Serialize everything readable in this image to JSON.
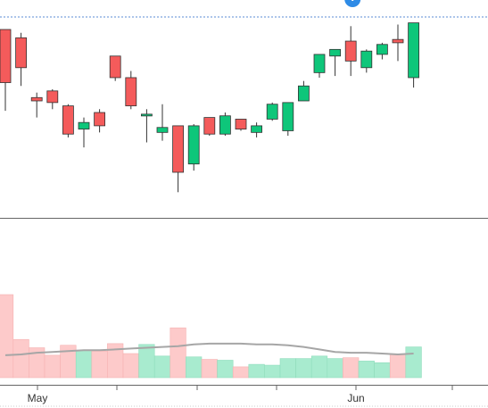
{
  "chart_data": {
    "type": "candlestick",
    "price_pane": {
      "ylim": [
        0,
        100
      ],
      "candles": [
        {
          "o": 93,
          "h": 93,
          "l": 44,
          "c": 61
        },
        {
          "o": 88,
          "h": 91,
          "l": 59,
          "c": 70
        },
        {
          "o": 52,
          "h": 55,
          "l": 40,
          "c": 50
        },
        {
          "o": 56,
          "h": 57,
          "l": 45,
          "c": 49
        },
        {
          "o": 47,
          "h": 48,
          "l": 28,
          "c": 30
        },
        {
          "o": 33,
          "h": 40,
          "l": 22,
          "c": 37
        },
        {
          "o": 43,
          "h": 45,
          "l": 31,
          "c": 35
        },
        {
          "o": 77,
          "h": 77,
          "l": 62,
          "c": 64
        },
        {
          "o": 64,
          "h": 68,
          "l": 45,
          "c": 47
        },
        {
          "o": 41,
          "h": 45,
          "l": 25,
          "c": 42
        },
        {
          "o": 31,
          "h": 48,
          "l": 26,
          "c": 34
        },
        {
          "o": 35,
          "h": 35,
          "l": -5,
          "c": 7
        },
        {
          "o": 12,
          "h": 36,
          "l": 8,
          "c": 35
        },
        {
          "o": 40,
          "h": 40,
          "l": 29,
          "c": 30
        },
        {
          "o": 30,
          "h": 43,
          "l": 29,
          "c": 41
        },
        {
          "o": 39,
          "h": 39,
          "l": 32,
          "c": 33
        },
        {
          "o": 31,
          "h": 37,
          "l": 28,
          "c": 35
        },
        {
          "o": 39,
          "h": 49,
          "l": 38,
          "c": 48
        },
        {
          "o": 32,
          "h": 49,
          "l": 29,
          "c": 49
        },
        {
          "o": 50,
          "h": 62,
          "l": 50,
          "c": 59
        },
        {
          "o": 67,
          "h": 78,
          "l": 64,
          "c": 78
        },
        {
          "o": 77,
          "h": 81,
          "l": 65,
          "c": 81
        },
        {
          "o": 86,
          "h": 95,
          "l": 65,
          "c": 74
        },
        {
          "o": 70,
          "h": 81,
          "l": 67,
          "c": 80
        },
        {
          "o": 78,
          "h": 85,
          "l": 75,
          "c": 84
        },
        {
          "o": 87,
          "h": 96,
          "l": 74,
          "c": 85
        },
        {
          "o": 64,
          "h": 97,
          "l": 58,
          "c": 97
        }
      ]
    },
    "volume_pane": {
      "ylim": [
        0,
        100
      ],
      "volumes": [
        100,
        46,
        36,
        27,
        39,
        33,
        32,
        41,
        29,
        40,
        26,
        60,
        25,
        22,
        21,
        13,
        16,
        15,
        23,
        23,
        26,
        23,
        24,
        20,
        18,
        28,
        37
      ],
      "moving_average": [
        27,
        28,
        30,
        31,
        32,
        33,
        33,
        34,
        35,
        36,
        37,
        38,
        40,
        41,
        41,
        41,
        40,
        40,
        39,
        37,
        34,
        31,
        30,
        30,
        29,
        28,
        29
      ]
    },
    "x_ticks": [
      "May",
      "Jun"
    ],
    "event_marker": {
      "candle": 22,
      "icon": "info-icon"
    },
    "colors": {
      "up": "#0ec67a",
      "down": "#f45b5b",
      "up_volume": "#a8ebcf",
      "down_volume": "#fdcaca",
      "moving_average": "#a6a6a6",
      "guide_line": "#5b8bd6",
      "marker": "#2e8be6",
      "axis": "#666666"
    }
  }
}
